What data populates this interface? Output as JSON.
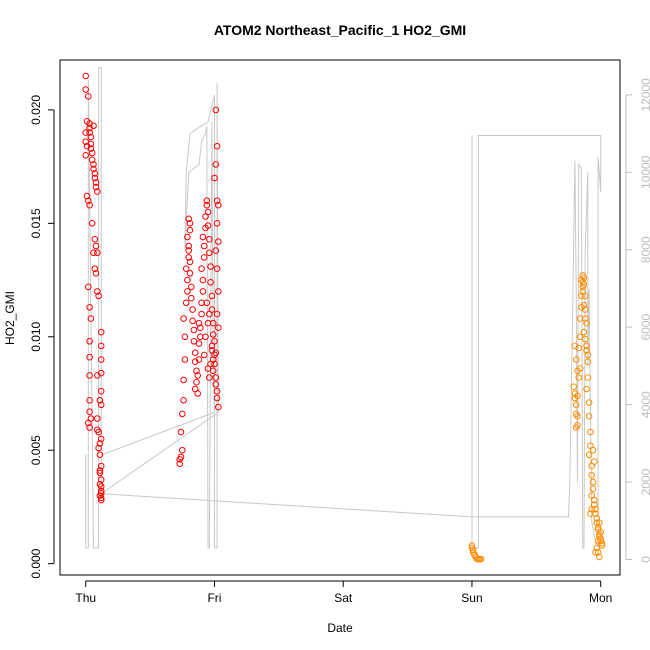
{
  "chart_data": {
    "type": "scatter",
    "title": "ATOM2 Northeast_Pacific_1 HO2_GMI",
    "xlabel": "Date",
    "ylabel": "HO2_GMI",
    "x_ticks": [
      "Thu",
      "Fri",
      "Sat",
      "Sun",
      "Mon"
    ],
    "x_range_days": [
      -0.2,
      4.15
    ],
    "ylim": [
      -0.0005,
      0.0222
    ],
    "y_ticks": [
      "0.000",
      "0.005",
      "0.010",
      "0.015",
      "0.020"
    ],
    "y_tick_values": [
      0,
      0.005,
      0.01,
      0.015,
      0.02
    ],
    "y2lim": [
      -400,
      12900
    ],
    "y2_ticks": [
      "0",
      "2000",
      "4000",
      "6000",
      "8000",
      "10000",
      "12000"
    ],
    "y2_tick_values": [
      0,
      2000,
      4000,
      6000,
      8000,
      10000,
      12000
    ],
    "colors": {
      "series_a": "#ff0000",
      "series_b": "#ff8c00",
      "altitude": "#c8c8c8",
      "axis": "#000000",
      "right_axis": "#bdbdbd"
    },
    "series": [
      {
        "points": [
          [
            0.0,
            0.0215
          ],
          [
            0.0,
            0.0209
          ],
          [
            0.01,
            0.0195
          ],
          [
            0.0,
            0.019
          ],
          [
            0.0,
            0.0186
          ],
          [
            0.01,
            0.0184
          ],
          [
            0.0,
            0.018
          ],
          [
            0.02,
            0.0206
          ],
          [
            0.03,
            0.0194
          ],
          [
            0.03,
            0.0192
          ],
          [
            0.03,
            0.019
          ],
          [
            0.04,
            0.0188
          ],
          [
            0.04,
            0.0185
          ],
          [
            0.04,
            0.0183
          ],
          [
            0.05,
            0.0181
          ],
          [
            0.05,
            0.0178
          ],
          [
            0.06,
            0.0193
          ],
          [
            0.06,
            0.0176
          ],
          [
            0.06,
            0.0174
          ],
          [
            0.07,
            0.0172
          ],
          [
            0.07,
            0.017
          ],
          [
            0.08,
            0.0168
          ],
          [
            0.08,
            0.0166
          ],
          [
            0.09,
            0.0164
          ],
          [
            0.01,
            0.0162
          ],
          [
            0.02,
            0.016
          ],
          [
            0.03,
            0.0158
          ],
          [
            0.05,
            0.015
          ],
          [
            0.07,
            0.0143
          ],
          [
            0.08,
            0.014
          ],
          [
            0.09,
            0.0137
          ],
          [
            0.06,
            0.0137
          ],
          [
            0.07,
            0.013
          ],
          [
            0.08,
            0.0128
          ],
          [
            0.09,
            0.012
          ],
          [
            0.1,
            0.0118
          ],
          [
            0.02,
            0.0122
          ],
          [
            0.03,
            0.0113
          ],
          [
            0.04,
            0.0108
          ],
          [
            0.12,
            0.0102
          ],
          [
            0.12,
            0.0096
          ],
          [
            0.03,
            0.0098
          ],
          [
            0.03,
            0.0091
          ],
          [
            0.12,
            0.009
          ],
          [
            0.03,
            0.0083
          ],
          [
            0.09,
            0.0083
          ],
          [
            0.12,
            0.0084
          ],
          [
            0.12,
            0.0076
          ],
          [
            0.11,
            0.0072
          ],
          [
            0.12,
            0.007
          ],
          [
            0.03,
            0.0072
          ],
          [
            0.03,
            0.0067
          ],
          [
            0.02,
            0.0062
          ],
          [
            0.03,
            0.006
          ],
          [
            0.04,
            0.0064
          ],
          [
            0.09,
            0.0064
          ],
          [
            0.09,
            0.0059
          ],
          [
            0.1,
            0.0058
          ],
          [
            0.11,
            0.0053
          ],
          [
            0.12,
            0.0055
          ],
          [
            0.11,
            0.0048
          ],
          [
            0.12,
            0.0043
          ],
          [
            0.11,
            0.0041
          ],
          [
            0.12,
            0.0037
          ],
          [
            0.11,
            0.0035
          ],
          [
            0.12,
            0.0034
          ],
          [
            0.12,
            0.0032
          ],
          [
            0.12,
            0.0031
          ],
          [
            0.11,
            0.003
          ],
          [
            0.12,
            0.0029
          ],
          [
            0.12,
            0.0028
          ],
          [
            0.11,
            0.004
          ],
          [
            0.1,
            0.0051
          ],
          [
            0.73,
            0.0046
          ],
          [
            0.73,
            0.0044
          ],
          [
            0.74,
            0.0047
          ],
          [
            0.75,
            0.005
          ],
          [
            0.74,
            0.0058
          ],
          [
            0.75,
            0.0066
          ],
          [
            0.76,
            0.0072
          ],
          [
            0.76,
            0.0081
          ],
          [
            0.77,
            0.009
          ],
          [
            0.77,
            0.01
          ],
          [
            0.76,
            0.0108
          ],
          [
            0.78,
            0.0115
          ],
          [
            0.79,
            0.012
          ],
          [
            0.79,
            0.0125
          ],
          [
            0.78,
            0.013
          ],
          [
            0.8,
            0.0135
          ],
          [
            0.8,
            0.014
          ],
          [
            0.79,
            0.0144
          ],
          [
            0.81,
            0.0147
          ],
          [
            0.81,
            0.015
          ],
          [
            0.8,
            0.0152
          ],
          [
            0.8,
            0.0138
          ],
          [
            0.81,
            0.0133
          ],
          [
            0.81,
            0.0128
          ],
          [
            0.82,
            0.0122
          ],
          [
            0.82,
            0.0117
          ],
          [
            0.83,
            0.0112
          ],
          [
            0.83,
            0.0107
          ],
          [
            0.84,
            0.0103
          ],
          [
            0.84,
            0.0098
          ],
          [
            0.85,
            0.0093
          ],
          [
            0.85,
            0.0089
          ],
          [
            0.86,
            0.0085
          ],
          [
            0.86,
            0.008
          ],
          [
            0.85,
            0.0077
          ],
          [
            0.87,
            0.0075
          ],
          [
            0.87,
            0.0083
          ],
          [
            0.88,
            0.009
          ],
          [
            0.88,
            0.0097
          ],
          [
            0.89,
            0.0104
          ],
          [
            0.89,
            0.01
          ],
          [
            0.88,
            0.0106
          ],
          [
            0.9,
            0.011
          ],
          [
            0.9,
            0.0115
          ],
          [
            0.91,
            0.012
          ],
          [
            0.91,
            0.0125
          ],
          [
            0.9,
            0.013
          ],
          [
            0.92,
            0.0135
          ],
          [
            0.92,
            0.014
          ],
          [
            0.91,
            0.0144
          ],
          [
            0.93,
            0.0148
          ],
          [
            0.93,
            0.0153
          ],
          [
            0.94,
            0.0158
          ],
          [
            0.94,
            0.016
          ],
          [
            0.95,
            0.0155
          ],
          [
            0.95,
            0.0149
          ],
          [
            0.96,
            0.0143
          ],
          [
            0.96,
            0.0137
          ],
          [
            0.97,
            0.0131
          ],
          [
            0.97,
            0.0124
          ],
          [
            0.98,
            0.0118
          ],
          [
            0.98,
            0.0112
          ],
          [
            0.99,
            0.0106
          ],
          [
            0.99,
            0.0101
          ],
          [
            0.98,
            0.0096
          ],
          [
            1.0,
            0.0092
          ],
          [
            1.0,
            0.0088
          ],
          [
            0.99,
            0.0085
          ],
          [
            1.01,
            0.0082
          ],
          [
            1.01,
            0.0079
          ],
          [
            1.02,
            0.0076
          ],
          [
            1.02,
            0.0073
          ],
          [
            1.03,
            0.0069
          ],
          [
            0.95,
            0.0106
          ],
          [
            0.96,
            0.011
          ],
          [
            0.94,
            0.0115
          ],
          [
            0.93,
            0.01
          ],
          [
            0.92,
            0.0092
          ],
          [
            0.95,
            0.0086
          ],
          [
            0.96,
            0.0082
          ],
          [
            0.97,
            0.0088
          ],
          [
            0.98,
            0.0094
          ],
          [
            0.99,
            0.009
          ],
          [
            1.0,
            0.017
          ],
          [
            1.01,
            0.0176
          ],
          [
            1.02,
            0.0184
          ],
          [
            1.01,
            0.02
          ],
          [
            1.02,
            0.016
          ],
          [
            1.03,
            0.0158
          ],
          [
            1.02,
            0.015
          ],
          [
            1.03,
            0.0142
          ],
          [
            1.01,
            0.0138
          ],
          [
            1.02,
            0.013
          ],
          [
            1.03,
            0.012
          ],
          [
            1.02,
            0.011
          ],
          [
            1.03,
            0.0104
          ],
          [
            1.0,
            0.0098
          ],
          [
            1.01,
            0.0093
          ]
        ]
      },
      {
        "points": [
          [
            3.0,
            0.0008
          ],
          [
            3.0,
            0.0007
          ],
          [
            3.01,
            0.0006
          ],
          [
            3.01,
            0.0005
          ],
          [
            3.02,
            0.0004
          ],
          [
            3.02,
            0.0004
          ],
          [
            3.03,
            0.0003
          ],
          [
            3.03,
            0.0003
          ],
          [
            3.04,
            0.0002
          ],
          [
            3.05,
            0.0002
          ],
          [
            3.06,
            0.0002
          ],
          [
            3.07,
            0.0002
          ],
          [
            3.8,
            0.0096
          ],
          [
            3.81,
            0.009
          ],
          [
            3.82,
            0.0085
          ],
          [
            3.79,
            0.0078
          ],
          [
            3.8,
            0.0075
          ],
          [
            3.81,
            0.007
          ],
          [
            3.82,
            0.0065
          ],
          [
            3.81,
            0.006
          ],
          [
            3.83,
            0.0095
          ],
          [
            3.84,
            0.01
          ],
          [
            3.84,
            0.0108
          ],
          [
            3.85,
            0.0113
          ],
          [
            3.85,
            0.0118
          ],
          [
            3.86,
            0.0122
          ],
          [
            3.86,
            0.0124
          ],
          [
            3.87,
            0.0126
          ],
          [
            3.86,
            0.0127
          ],
          [
            3.87,
            0.0123
          ],
          [
            3.88,
            0.0118
          ],
          [
            3.88,
            0.0112
          ],
          [
            3.89,
            0.0106
          ],
          [
            3.88,
            0.0099
          ],
          [
            3.89,
            0.0094
          ],
          [
            3.9,
            0.0089
          ],
          [
            3.9,
            0.0082
          ],
          [
            3.89,
            0.0077
          ],
          [
            3.91,
            0.0071
          ],
          [
            3.91,
            0.0065
          ],
          [
            3.92,
            0.0058
          ],
          [
            3.92,
            0.0052
          ],
          [
            3.91,
            0.0048
          ],
          [
            3.93,
            0.0043
          ],
          [
            3.93,
            0.0039
          ],
          [
            3.94,
            0.0036
          ],
          [
            3.94,
            0.0033
          ],
          [
            3.93,
            0.003
          ],
          [
            3.95,
            0.0028
          ],
          [
            3.95,
            0.0026
          ],
          [
            3.96,
            0.0024
          ],
          [
            3.96,
            0.0022
          ],
          [
            3.97,
            0.002
          ],
          [
            3.97,
            0.0018
          ],
          [
            3.98,
            0.0016
          ],
          [
            3.98,
            0.0015
          ],
          [
            3.99,
            0.0013
          ],
          [
            3.99,
            0.0012
          ],
          [
            4.0,
            0.0011
          ],
          [
            4.0,
            0.001
          ],
          [
            4.01,
            0.0009
          ],
          [
            4.01,
            0.0008
          ],
          [
            4.0,
            0.0014
          ],
          [
            3.99,
            0.0018
          ],
          [
            3.98,
            0.0005
          ],
          [
            3.99,
            0.0003
          ],
          [
            3.95,
            0.0045
          ],
          [
            3.94,
            0.005
          ],
          [
            3.93,
            0.0024
          ],
          [
            3.92,
            0.0022
          ],
          [
            3.96,
            0.0005
          ],
          [
            3.97,
            0.0007
          ],
          [
            3.98,
            0.001
          ],
          [
            3.85,
            0.0125
          ],
          [
            3.86,
            0.012
          ],
          [
            3.87,
            0.0114
          ],
          [
            3.88,
            0.0108
          ],
          [
            3.87,
            0.0102
          ],
          [
            3.89,
            0.0096
          ],
          [
            3.9,
            0.0092
          ],
          [
            3.8,
            0.0073
          ],
          [
            3.82,
            0.0074
          ],
          [
            3.84,
            0.0086
          ],
          [
            3.83,
            0.0082
          ],
          [
            3.82,
            0.0061
          ],
          [
            3.81,
            0.0066
          ]
        ]
      }
    ],
    "altitude_line": [
      [
        0.0,
        2700
      ],
      [
        0.0,
        300
      ],
      [
        0.02,
        300
      ],
      [
        0.02,
        12400
      ],
      [
        0.06,
        300
      ],
      [
        0.1,
        300
      ],
      [
        0.1,
        12700
      ],
      [
        0.12,
        12700
      ],
      [
        0.12,
        1700
      ],
      [
        0.12,
        2700
      ],
      [
        1.0,
        3800
      ],
      [
        0.99,
        4800
      ],
      [
        0.98,
        11300
      ],
      [
        0.96,
        300
      ],
      [
        0.95,
        300
      ],
      [
        0.94,
        11200
      ],
      [
        0.93,
        11000
      ],
      [
        0.9,
        10800
      ],
      [
        0.88,
        10200
      ],
      [
        0.8,
        10000
      ],
      [
        0.77,
        8000
      ],
      [
        0.78,
        10000
      ],
      [
        0.81,
        11000
      ],
      [
        0.9,
        11200
      ],
      [
        0.95,
        11300
      ],
      [
        1.0,
        12000
      ],
      [
        1.0,
        300
      ],
      [
        1.02,
        300
      ],
      [
        1.02,
        12300
      ],
      [
        1.03,
        3800
      ],
      [
        0.12,
        1700
      ],
      [
        3.0,
        1100
      ],
      [
        3.0,
        10950
      ],
      [
        3.0,
        300
      ],
      [
        3.05,
        300
      ],
      [
        3.05,
        5700
      ],
      [
        3.05,
        2800
      ],
      [
        3.05,
        10950
      ],
      [
        4.0,
        10950
      ],
      [
        4.0,
        9500
      ],
      [
        3.98,
        10400
      ],
      [
        3.98,
        300
      ],
      [
        3.95,
        600
      ],
      [
        3.93,
        1000
      ],
      [
        3.91,
        7000
      ],
      [
        3.9,
        5000
      ],
      [
        3.9,
        10000
      ],
      [
        3.88,
        8000
      ],
      [
        3.87,
        300
      ],
      [
        3.86,
        300
      ],
      [
        3.85,
        10100
      ],
      [
        3.83,
        10200
      ],
      [
        3.82,
        2000
      ],
      [
        3.81,
        7000
      ],
      [
        3.8,
        10300
      ],
      [
        3.78,
        6000
      ],
      [
        3.76,
        2000
      ],
      [
        3.75,
        1100
      ],
      [
        3.0,
        1100
      ]
    ]
  }
}
